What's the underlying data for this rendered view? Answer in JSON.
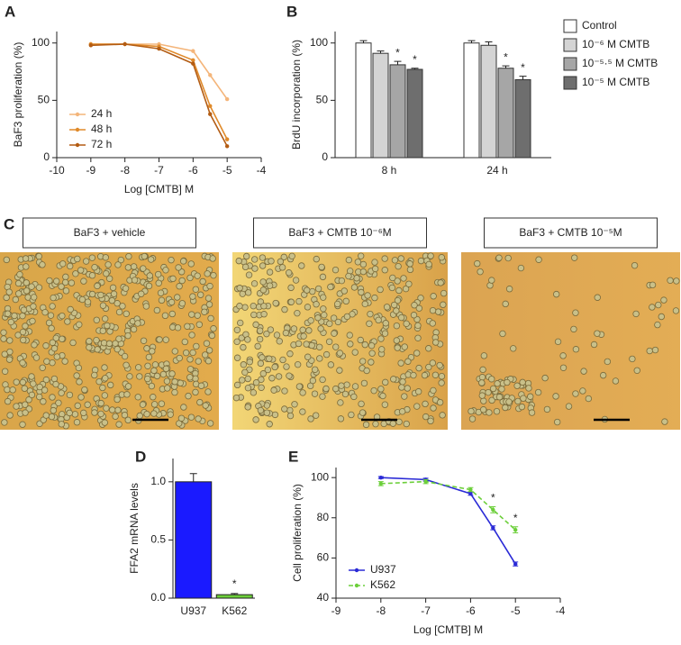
{
  "chart_data": [
    {
      "panel": "A",
      "type": "line",
      "x": [
        -9,
        -8,
        -7,
        -6,
        -5.5,
        -5
      ],
      "xlabel": "Log [CMTB] M",
      "ylabel": "BaF3 proliferation (%)",
      "xlim": [
        -10,
        -4
      ],
      "xticks": [
        -10,
        -9,
        -8,
        -7,
        -6,
        -5,
        -4
      ],
      "ylim": [
        0,
        110
      ],
      "yticks": [
        0,
        50,
        100
      ],
      "legend": "lower left",
      "series": [
        {
          "name": "24 h",
          "color": "#f4b57a",
          "values": [
            99,
            99,
            99,
            93,
            72,
            51
          ]
        },
        {
          "name": "48 h",
          "color": "#e08a2a",
          "values": [
            99,
            99,
            97,
            85,
            45,
            16
          ]
        },
        {
          "name": "72 h",
          "color": "#b35c13",
          "values": [
            98,
            99,
            95,
            82,
            38,
            10
          ]
        }
      ]
    },
    {
      "panel": "B",
      "type": "bar",
      "categories": [
        "8 h",
        "24 h"
      ],
      "ylabel": "BrdU incorporation (%)",
      "ylim": [
        0,
        110
      ],
      "yticks": [
        0,
        50,
        100
      ],
      "legend": "right",
      "series": [
        {
          "name": "Control",
          "color": "#ffffff",
          "values": [
            100,
            100
          ],
          "errors": [
            2,
            2
          ]
        },
        {
          "name": "10⁻⁶ M CMTB",
          "color": "#d4d4d4",
          "values": [
            91,
            98
          ],
          "errors": [
            2,
            3
          ]
        },
        {
          "name": "10⁻⁵·⁵ M CMTB",
          "color": "#a6a6a6",
          "values": [
            81,
            78
          ],
          "errors": [
            3,
            2
          ]
        },
        {
          "name": "10⁻⁵ M CMTB",
          "color": "#6e6e6e",
          "values": [
            77,
            68
          ],
          "errors": [
            1,
            3
          ]
        }
      ],
      "annotations": [
        {
          "text": "*",
          "series": "10⁻⁵·⁵ M CMTB",
          "category": "8 h"
        },
        {
          "text": "*",
          "series": "10⁻⁵ M CMTB",
          "category": "8 h"
        },
        {
          "text": "*",
          "series": "10⁻⁵·⁵ M CMTB",
          "category": "24 h"
        },
        {
          "text": "*",
          "series": "10⁻⁵ M CMTB",
          "category": "24 h"
        }
      ]
    },
    {
      "panel": "D",
      "type": "bar",
      "categories": [
        "U937",
        "K562"
      ],
      "values": [
        1.0,
        0.03
      ],
      "errors": [
        0.07,
        0.01
      ],
      "colors": [
        "#1a1aff",
        "#6ccf3a"
      ],
      "ylabel": "FFA2 mRNA levels",
      "ylim": [
        0,
        1.2
      ],
      "yticks": [
        {
          "value": 0,
          "label": "0.0"
        },
        0.5,
        {
          "value": 1,
          "label": "1.0"
        }
      ],
      "annotations": [
        {
          "text": "*",
          "category": "K562"
        }
      ]
    },
    {
      "panel": "E",
      "type": "line",
      "x": [
        -8,
        -7,
        -6,
        -5.5,
        -5
      ],
      "xlabel": "Log [CMTB] M",
      "ylabel": "Cell proliferation (%)",
      "xlim": [
        -9,
        -4
      ],
      "xticks": [
        -9,
        -8,
        -7,
        -6,
        -5,
        -4
      ],
      "ylim": [
        40,
        105
      ],
      "yticks": [
        40,
        60,
        80,
        100
      ],
      "legend": "lower left",
      "series": [
        {
          "name": "U937",
          "color": "#2a2ad6",
          "values": [
            100,
            99,
            92,
            75,
            57
          ],
          "errors": [
            0.5,
            0.7,
            0.8,
            1,
            1
          ]
        },
        {
          "name": "K562",
          "color": "#6ccf3a",
          "linestyle": "dashed",
          "values": [
            97,
            98,
            94,
            84,
            74
          ],
          "errors": [
            1,
            1,
            1,
            1.5,
            1.5
          ]
        }
      ],
      "annotations": [
        {
          "text": "*",
          "series": "K562",
          "x": -5.5
        },
        {
          "text": "*",
          "series": "K562",
          "x": -5
        }
      ]
    }
  ],
  "figure_c": {
    "panel": "C",
    "captions": [
      "BaF3 + vehicle",
      "BaF3 + CMTB 10⁻⁶M",
      "BaF3 + CMTB 10⁻⁵M"
    ]
  }
}
